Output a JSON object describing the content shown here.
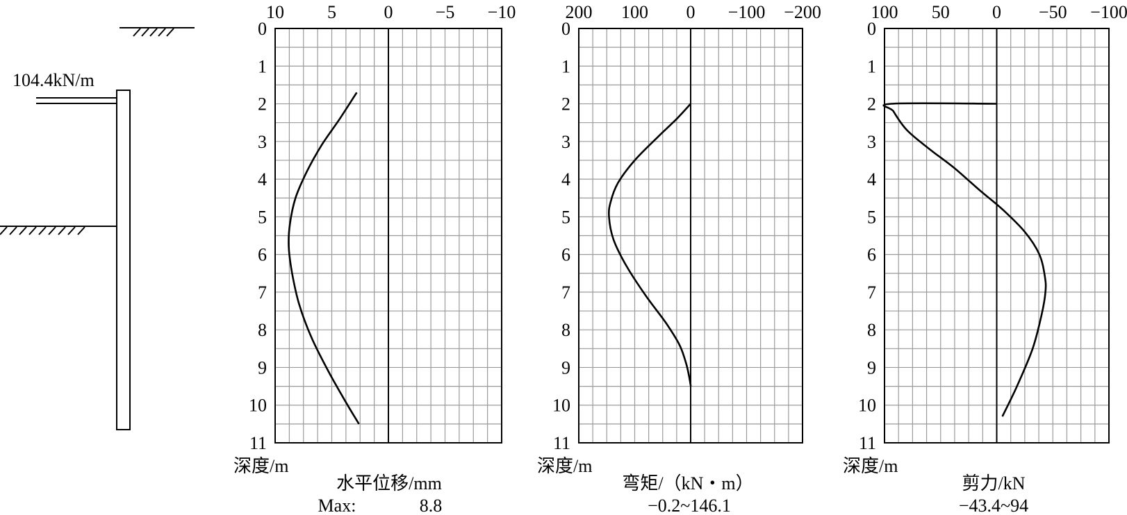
{
  "wall_schematic": {
    "load_label": "104.4kN/m"
  },
  "chart_data": [
    {
      "type": "line",
      "title": "",
      "xlabel": "水平位移/mm",
      "ylabel": "深度/m",
      "summary_label": "Max:",
      "summary_value": "8.8",
      "xlim": [
        10,
        -10
      ],
      "ylim": [
        0,
        11
      ],
      "x_ticks": [
        "10",
        "5",
        "0",
        "−5",
        "−10"
      ],
      "x_tick_values": [
        10,
        5,
        0,
        -5,
        -10
      ],
      "y_ticks": [
        "0",
        "1",
        "2",
        "3",
        "4",
        "5",
        "6",
        "7",
        "8",
        "9",
        "10",
        "11"
      ],
      "y_tick_values": [
        0,
        1,
        2,
        3,
        4,
        5,
        6,
        7,
        8,
        9,
        10,
        11
      ],
      "grid": true,
      "series": [
        {
          "values": [
            {
              "x": 2.8,
              "y": 1.7
            },
            {
              "x": 4.3,
              "y": 2.4
            },
            {
              "x": 5.9,
              "y": 3.1
            },
            {
              "x": 7.2,
              "y": 3.8
            },
            {
              "x": 8.2,
              "y": 4.5
            },
            {
              "x": 8.7,
              "y": 5.2
            },
            {
              "x": 8.8,
              "y": 5.8
            },
            {
              "x": 8.5,
              "y": 6.5
            },
            {
              "x": 7.9,
              "y": 7.3
            },
            {
              "x": 6.8,
              "y": 8.2
            },
            {
              "x": 5.3,
              "y": 9.1
            },
            {
              "x": 3.8,
              "y": 9.9
            },
            {
              "x": 2.6,
              "y": 10.5
            }
          ]
        }
      ]
    },
    {
      "type": "line",
      "title": "",
      "xlabel": "弯矩/（kN・m）",
      "ylabel": "深度/m",
      "summary_label": "",
      "summary_value": "−0.2~146.1",
      "xlim": [
        200,
        -200
      ],
      "ylim": [
        0,
        11
      ],
      "x_ticks": [
        "200",
        "100",
        "0",
        "−100",
        "−200"
      ],
      "x_tick_values": [
        200,
        100,
        0,
        -100,
        -200
      ],
      "y_ticks": [
        "0",
        "1",
        "2",
        "3",
        "4",
        "5",
        "6",
        "7",
        "8",
        "9",
        "10",
        "11"
      ],
      "y_tick_values": [
        0,
        1,
        2,
        3,
        4,
        5,
        6,
        7,
        8,
        9,
        10,
        11
      ],
      "grid": true,
      "series": [
        {
          "values": [
            {
              "x": 0,
              "y": 2.0
            },
            {
              "x": 25,
              "y": 2.4
            },
            {
              "x": 60,
              "y": 2.9
            },
            {
              "x": 100,
              "y": 3.5
            },
            {
              "x": 130,
              "y": 4.1
            },
            {
              "x": 143,
              "y": 4.6
            },
            {
              "x": 146,
              "y": 5.0
            },
            {
              "x": 138,
              "y": 5.6
            },
            {
              "x": 115,
              "y": 6.3
            },
            {
              "x": 80,
              "y": 7.1
            },
            {
              "x": 45,
              "y": 7.8
            },
            {
              "x": 20,
              "y": 8.4
            },
            {
              "x": 8,
              "y": 8.9
            },
            {
              "x": 2,
              "y": 9.3
            },
            {
              "x": -0.2,
              "y": 9.5
            }
          ]
        }
      ]
    },
    {
      "type": "line",
      "title": "",
      "xlabel": "剪力/kN",
      "ylabel": "深度/m",
      "summary_label": "",
      "summary_value": "−43.4~94",
      "xlim": [
        100,
        -100
      ],
      "ylim": [
        0,
        11
      ],
      "x_ticks": [
        "100",
        "50",
        "0",
        "−50",
        "−100"
      ],
      "x_tick_values": [
        100,
        50,
        0,
        -50,
        -100
      ],
      "y_ticks": [
        "0",
        "1",
        "2",
        "3",
        "4",
        "5",
        "6",
        "7",
        "8",
        "9",
        "10",
        "11"
      ],
      "y_tick_values": [
        0,
        1,
        2,
        3,
        4,
        5,
        6,
        7,
        8,
        9,
        10,
        11
      ],
      "grid": true,
      "series": [
        {
          "values": [
            {
              "x": 0,
              "y": 2.0
            },
            {
              "x": 94,
              "y": 2.0
            },
            {
              "x": 92,
              "y": 2.2
            },
            {
              "x": 80,
              "y": 2.7
            },
            {
              "x": 60,
              "y": 3.2
            },
            {
              "x": 38,
              "y": 3.7
            },
            {
              "x": 15,
              "y": 4.3
            },
            {
              "x": -5,
              "y": 4.8
            },
            {
              "x": -25,
              "y": 5.4
            },
            {
              "x": -38,
              "y": 6.0
            },
            {
              "x": -43,
              "y": 6.6
            },
            {
              "x": -43.4,
              "y": 7.0
            },
            {
              "x": -40,
              "y": 7.6
            },
            {
              "x": -32,
              "y": 8.5
            },
            {
              "x": -18,
              "y": 9.5
            },
            {
              "x": -5,
              "y": 10.3
            }
          ]
        }
      ]
    }
  ]
}
